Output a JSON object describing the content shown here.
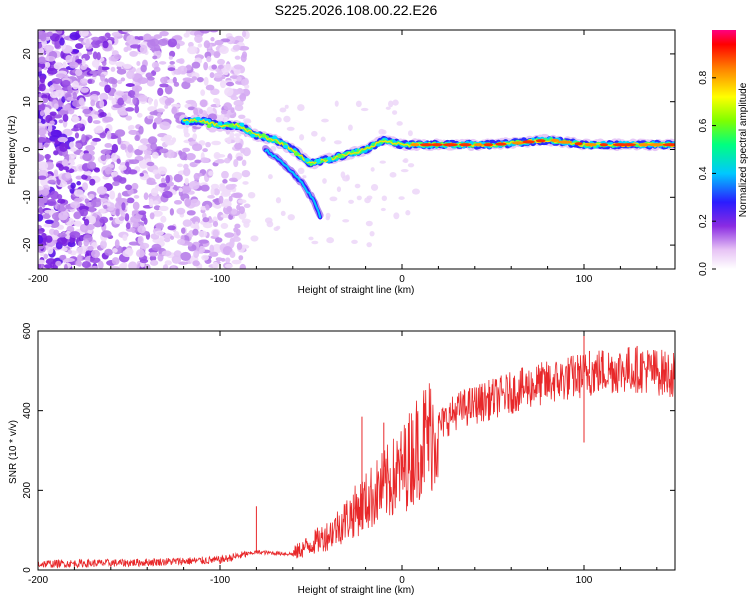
{
  "title": "S225.2026.108.00.22.E26",
  "chart_data": [
    {
      "type": "heatmap",
      "name": "spectrogram",
      "xlabel": "Height of straight line (km)",
      "ylabel": "Frequency (Hz)",
      "xlim": [
        -200,
        150
      ],
      "ylim": [
        -25,
        25
      ],
      "xticks": [
        -200,
        -100,
        0,
        100
      ],
      "yticks": [
        -20,
        -10,
        0,
        10,
        20
      ],
      "colorbar": {
        "label": "Normalized spectral amplitude",
        "range": [
          0,
          1
        ],
        "ticks": [
          "0.0",
          "0.2",
          "0.4",
          "0.6",
          "0.8"
        ]
      },
      "ridge": [
        {
          "x": -120,
          "y": 6
        },
        {
          "x": -110,
          "y": 6
        },
        {
          "x": -100,
          "y": 5
        },
        {
          "x": -90,
          "y": 5
        },
        {
          "x": -80,
          "y": 3
        },
        {
          "x": -70,
          "y": 2
        },
        {
          "x": -60,
          "y": 0
        },
        {
          "x": -50,
          "y": -3
        },
        {
          "x": -40,
          "y": -2
        },
        {
          "x": -30,
          "y": -1
        },
        {
          "x": -20,
          "y": 0
        },
        {
          "x": -10,
          "y": 2
        },
        {
          "x": 0,
          "y": 1
        },
        {
          "x": 50,
          "y": 1
        },
        {
          "x": 80,
          "y": 2
        },
        {
          "x": 100,
          "y": 1
        },
        {
          "x": 150,
          "y": 1
        }
      ],
      "branch": [
        {
          "x": -75,
          "y": 0
        },
        {
          "x": -65,
          "y": -3
        },
        {
          "x": -55,
          "y": -7
        },
        {
          "x": -48,
          "y": -11
        },
        {
          "x": -45,
          "y": -14
        }
      ]
    },
    {
      "type": "line",
      "name": "snr",
      "xlabel": "Height of straight line (km)",
      "ylabel": "SNR (10 * v/v)",
      "xlim": [
        -200,
        150
      ],
      "ylim": [
        0,
        600
      ],
      "xticks": [
        -200,
        -100,
        0,
        100
      ],
      "yticks": [
        0,
        200,
        400,
        600
      ],
      "color": "#e8282a",
      "trend": [
        {
          "x": -200,
          "y": 15
        },
        {
          "x": -150,
          "y": 18
        },
        {
          "x": -100,
          "y": 25
        },
        {
          "x": -80,
          "y": 45
        },
        {
          "x": -60,
          "y": 40
        },
        {
          "x": -40,
          "y": 90
        },
        {
          "x": -20,
          "y": 170
        },
        {
          "x": 0,
          "y": 250
        },
        {
          "x": 10,
          "y": 320
        },
        {
          "x": 20,
          "y": 360
        },
        {
          "x": 30,
          "y": 400
        },
        {
          "x": 50,
          "y": 430
        },
        {
          "x": 70,
          "y": 460
        },
        {
          "x": 90,
          "y": 480
        },
        {
          "x": 110,
          "y": 500
        },
        {
          "x": 130,
          "y": 505
        },
        {
          "x": 150,
          "y": 490
        }
      ],
      "spikes": [
        {
          "x": -80,
          "y": 160
        },
        {
          "x": -22,
          "y": 385
        },
        {
          "x": -10,
          "y": 370
        },
        {
          "x": 100,
          "y": 600
        },
        {
          "x": 100,
          "y": 320
        },
        {
          "x": 103,
          "y": 550
        }
      ]
    }
  ]
}
